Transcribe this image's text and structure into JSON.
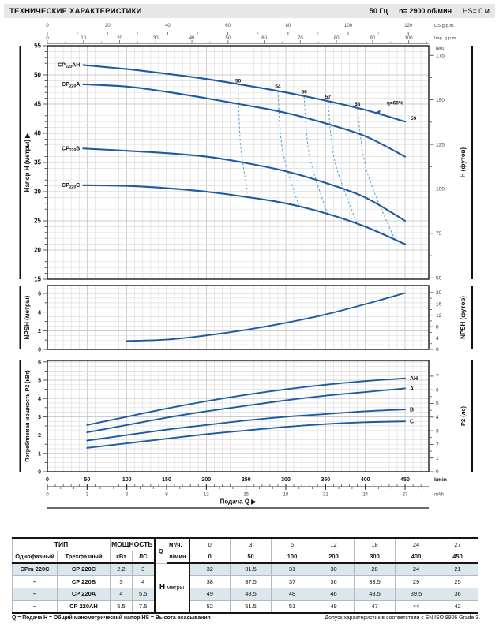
{
  "header": {
    "title": "ТЕХНИЧЕСКИЕ ХАРАКТЕРИСТИКИ",
    "frequency": "50 Гц",
    "speed": "n= 2900 об/мин",
    "suction": "HS= 0 м"
  },
  "colors": {
    "curve": "#1d5a9e",
    "efficiency": "#58a8da",
    "grid_minor": "#dedede",
    "grid_major": "#bcbcbc",
    "border": "#1a1a1a",
    "table_shade": "#dce6ed",
    "header_bg": "#e7e7e7"
  },
  "axes": {
    "top_scales": [
      {
        "label": "US g.p.m.",
        "ticks": [
          0,
          20,
          40,
          60,
          80,
          100,
          120
        ],
        "minor_step": 10,
        "to_lmin": 3.785
      },
      {
        "label": "Imp. g.p.m.",
        "ticks": [
          0,
          10,
          20,
          30,
          40,
          50,
          60,
          70,
          80,
          90,
          100
        ],
        "minor_step": 5,
        "to_lmin": 4.546
      }
    ],
    "feet_caption": "feet",
    "bottom_scales": [
      {
        "label": "l/min",
        "ticks": [
          0,
          50,
          100,
          150,
          200,
          250,
          300,
          350,
          400,
          450
        ],
        "minor_step": 10,
        "to_lmin": 1
      },
      {
        "label": "m³/h",
        "ticks": [
          0,
          3,
          6,
          9,
          12,
          15,
          18,
          21,
          24,
          27
        ],
        "minor_step": 1,
        "to_lmin": 16.667
      }
    ],
    "flow_label": "Подача Q ▶"
  },
  "chart_data": [
    {
      "id": "head",
      "type": "line",
      "ylabel": "Напор H (метры) ▶",
      "ylabel_right": "H (футов)",
      "xlabel": "Подача Q",
      "ylim": [
        15,
        55
      ],
      "yticks": [
        15,
        20,
        25,
        30,
        35,
        40,
        45,
        50,
        55
      ],
      "yticks_right": {
        "values": [
          50,
          75,
          100,
          125,
          150,
          175
        ],
        "to_main_unit": 0.3048
      },
      "series": [
        {
          "name": "CP220AH",
          "points": [
            [
              45,
              51.7
            ],
            [
              100,
              51
            ],
            [
              150,
              50.2
            ],
            [
              200,
              49.3
            ],
            [
              250,
              48.2
            ],
            [
              300,
              47
            ],
            [
              350,
              45.6
            ],
            [
              400,
              44
            ],
            [
              450,
              42
            ]
          ]
        },
        {
          "name": "CP220A",
          "points": [
            [
              45,
              48.4
            ],
            [
              100,
              48
            ],
            [
              150,
              47.1
            ],
            [
              200,
              46
            ],
            [
              250,
              44.8
            ],
            [
              300,
              43.5
            ],
            [
              350,
              41.7
            ],
            [
              400,
              39.5
            ],
            [
              450,
              36
            ]
          ]
        },
        {
          "name": "CP220B",
          "points": [
            [
              45,
              37.4
            ],
            [
              100,
              37
            ],
            [
              150,
              36.6
            ],
            [
              200,
              36
            ],
            [
              250,
              34.9
            ],
            [
              300,
              33.5
            ],
            [
              350,
              31.5
            ],
            [
              400,
              29
            ],
            [
              450,
              25
            ]
          ]
        },
        {
          "name": "CP220C",
          "points": [
            [
              45,
              31.1
            ],
            [
              100,
              31
            ],
            [
              150,
              30.6
            ],
            [
              200,
              30
            ],
            [
              250,
              29.1
            ],
            [
              300,
              28
            ],
            [
              350,
              26.3
            ],
            [
              400,
              24
            ],
            [
              450,
              21
            ]
          ]
        }
      ],
      "efficiency_lines": [
        {
          "label": "50",
          "points": [
            [
              240,
              48.2
            ],
            [
              243,
              38
            ],
            [
              252,
              29.8
            ]
          ]
        },
        {
          "label": "54",
          "points": [
            [
              290,
              47.2
            ],
            [
              296,
              37
            ],
            [
              316,
              27.7
            ]
          ]
        },
        {
          "label": "56",
          "points": [
            [
              323,
              46.3
            ],
            [
              330,
              36
            ],
            [
              353,
              26.0
            ]
          ]
        },
        {
          "label": "57",
          "points": [
            [
              353,
              45.4
            ],
            [
              362,
              35
            ],
            [
              390,
              24.4
            ]
          ]
        },
        {
          "label": "58",
          "points": [
            [
              390,
              44.2
            ],
            [
              402,
              33.5
            ],
            [
              437,
              21.8
            ]
          ]
        }
      ],
      "annotations": [
        {
          "text": "η=60%",
          "q": 427,
          "h": 44.9
        },
        {
          "text": "59",
          "q": 457,
          "h": 42.3
        }
      ],
      "eff_marker": {
        "q": 412,
        "h": 43.6
      }
    },
    {
      "id": "npsh",
      "type": "line",
      "ylabel": "NPSH (метры)",
      "ylabel_right": "NPSH (футов)",
      "ylim": [
        0,
        6.8
      ],
      "yticks": [
        0,
        2,
        4,
        6
      ],
      "yticks_right": {
        "values": [
          0,
          4,
          8,
          12,
          16,
          20
        ],
        "to_main_unit": 0.3048
      },
      "series": [
        {
          "name": "NPSH",
          "points": [
            [
              100,
              0.9
            ],
            [
              150,
              1.05
            ],
            [
              200,
              1.5
            ],
            [
              250,
              2.1
            ],
            [
              300,
              2.85
            ],
            [
              350,
              3.75
            ],
            [
              400,
              4.85
            ],
            [
              450,
              6.05
            ]
          ]
        }
      ]
    },
    {
      "id": "p2",
      "type": "line",
      "ylabel": "Потребляемая мощность P2 (кВт)",
      "ylabel_right": "P2 (лс)",
      "ylim": [
        0,
        6.1
      ],
      "yticks": [
        0,
        1,
        2,
        3,
        4,
        5,
        6
      ],
      "yticks_right": {
        "values": [
          0,
          1,
          2,
          3,
          4,
          5,
          6,
          7
        ],
        "to_main_unit": 0.7457
      },
      "series": [
        {
          "name": "AH",
          "points": [
            [
              50,
              2.55
            ],
            [
              100,
              3.0
            ],
            [
              150,
              3.45
            ],
            [
              200,
              3.85
            ],
            [
              250,
              4.2
            ],
            [
              300,
              4.5
            ],
            [
              350,
              4.75
            ],
            [
              400,
              4.95
            ],
            [
              450,
              5.1
            ]
          ]
        },
        {
          "name": "A",
          "points": [
            [
              50,
              2.15
            ],
            [
              100,
              2.55
            ],
            [
              150,
              2.95
            ],
            [
              200,
              3.3
            ],
            [
              250,
              3.6
            ],
            [
              300,
              3.9
            ],
            [
              350,
              4.15
            ],
            [
              400,
              4.35
            ],
            [
              450,
              4.55
            ]
          ]
        },
        {
          "name": "B",
          "points": [
            [
              50,
              1.7
            ],
            [
              100,
              2.0
            ],
            [
              150,
              2.3
            ],
            [
              200,
              2.55
            ],
            [
              250,
              2.8
            ],
            [
              300,
              3.0
            ],
            [
              350,
              3.15
            ],
            [
              400,
              3.3
            ],
            [
              450,
              3.4
            ]
          ]
        },
        {
          "name": "C",
          "points": [
            [
              50,
              1.3
            ],
            [
              100,
              1.55
            ],
            [
              150,
              1.8
            ],
            [
              200,
              2.05
            ],
            [
              250,
              2.25
            ],
            [
              300,
              2.45
            ],
            [
              350,
              2.6
            ],
            [
              400,
              2.7
            ],
            [
              450,
              2.75
            ]
          ]
        }
      ]
    }
  ],
  "table": {
    "type_header": "ТИП",
    "power_header": "МОЩНОСТЬ",
    "single_phase": "Однофазный",
    "three_phase": "Трехфазный",
    "kw": "кВт",
    "hp": "ЛС",
    "q_label": "Q",
    "q_unit_m3h": "м³/ч.",
    "q_unit_lmin": "л/мин.",
    "q_m3h": [
      "0",
      "3",
      "6",
      "12",
      "18",
      "24",
      "27"
    ],
    "q_lmin": [
      "0",
      "50",
      "100",
      "200",
      "300",
      "400",
      "450"
    ],
    "h_label": "Н",
    "h_unit": "метры",
    "rows": [
      {
        "single": "CPm 220C",
        "three": "CP 220C",
        "kw": "2.2",
        "hp": "3",
        "h": [
          "32",
          "31.5",
          "31",
          "30",
          "28",
          "24",
          "21"
        ],
        "shaded": true
      },
      {
        "single": "–",
        "three": "CP 220B",
        "kw": "3",
        "hp": "4",
        "h": [
          "38",
          "37.5",
          "37",
          "36",
          "33.5",
          "29",
          "25"
        ],
        "shaded": false
      },
      {
        "single": "–",
        "three": "CP 220A",
        "kw": "4",
        "hp": "5.5",
        "h": [
          "49",
          "48.5",
          "48",
          "46",
          "43.5",
          "39.5",
          "36"
        ],
        "shaded": true
      },
      {
        "single": "–",
        "three": "CP 220AH",
        "kw": "5.5",
        "hp": "7.5",
        "h": [
          "52",
          "51.5",
          "51",
          "49",
          "47",
          "44",
          "42"
        ],
        "shaded": false
      }
    ]
  },
  "footer": {
    "left": "Q = Подача   Н = Общий манометрический напор   HS = Высота всасывания",
    "right": "Допуск характеристик в соответствии с EN ISO 9906 Grade 3."
  }
}
